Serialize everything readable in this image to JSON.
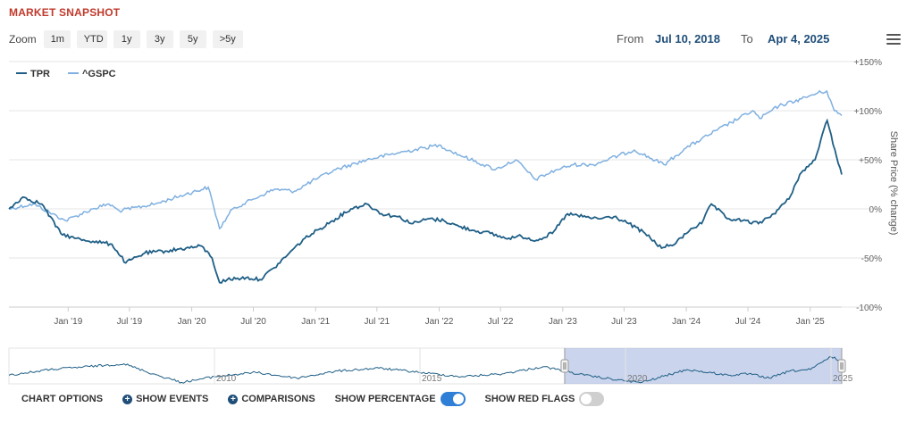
{
  "header": {
    "title": "MARKET SNAPSHOT"
  },
  "zoom": {
    "label": "Zoom",
    "buttons": [
      "1m",
      "YTD",
      "1y",
      "3y",
      "5y",
      ">5y"
    ]
  },
  "date_range": {
    "from_label": "From",
    "from_value": "Jul 10, 2018",
    "to_label": "To",
    "to_value": "Apr 4, 2025"
  },
  "menu": {
    "icon": "hamburger-menu-icon"
  },
  "chart_data": {
    "type": "line",
    "ylabel": "Share Price (% change)",
    "ylim": [
      -100,
      150
    ],
    "yticks": [
      "+150%",
      "+100%",
      "+50%",
      "0%",
      "-50%",
      "-100%"
    ],
    "xticks": [
      "Jan '19",
      "Jul '19",
      "Jan '20",
      "Jul '20",
      "Jan '21",
      "Jul '21",
      "Jan '22",
      "Jul '22",
      "Jan '23",
      "Jul '23",
      "Jan '24",
      "Jul '24",
      "Jan '25"
    ],
    "legend_position": "top-left",
    "series": [
      {
        "name": "TPR",
        "color": "#1f5f86",
        "x": [
          "2018-07-10",
          "2018-08-20",
          "2018-10-15",
          "2018-12-10",
          "2019-01-20",
          "2019-03-15",
          "2019-05-10",
          "2019-06-20",
          "2019-08-15",
          "2019-10-15",
          "2019-12-15",
          "2020-01-31",
          "2020-03-01",
          "2020-03-23",
          "2020-04-15",
          "2020-06-10",
          "2020-07-20",
          "2020-09-01",
          "2020-10-15",
          "2020-11-30",
          "2021-01-15",
          "2021-03-01",
          "2021-04-15",
          "2021-06-01",
          "2021-07-15",
          "2021-09-01",
          "2021-10-15",
          "2021-12-01",
          "2022-01-15",
          "2022-03-01",
          "2022-04-15",
          "2022-06-01",
          "2022-07-15",
          "2022-09-01",
          "2022-10-15",
          "2022-12-01",
          "2023-01-15",
          "2023-03-01",
          "2023-04-15",
          "2023-06-01",
          "2023-07-15",
          "2023-09-01",
          "2023-10-20",
          "2023-12-01",
          "2024-01-15",
          "2024-02-15",
          "2024-03-15",
          "2024-05-01",
          "2024-06-15",
          "2024-08-01",
          "2024-09-15",
          "2024-10-30",
          "2024-12-01",
          "2025-01-15",
          "2025-02-01",
          "2025-02-20",
          "2025-03-15",
          "2025-04-04"
        ],
        "values": [
          0,
          12,
          5,
          -25,
          -30,
          -33,
          -36,
          -55,
          -45,
          -43,
          -40,
          -38,
          -50,
          -75,
          -72,
          -70,
          -72,
          -60,
          -45,
          -30,
          -20,
          -10,
          0,
          5,
          -5,
          -8,
          -15,
          -10,
          -12,
          -18,
          -22,
          -25,
          -30,
          -28,
          -32,
          -25,
          -5,
          -8,
          -10,
          -8,
          -15,
          -25,
          -40,
          -35,
          -20,
          -15,
          5,
          -10,
          -12,
          -15,
          -5,
          10,
          35,
          50,
          70,
          90,
          60,
          35
        ]
      },
      {
        "name": "^GSPC",
        "color": "#7fb0e0",
        "x": [
          "2018-07-10",
          "2018-09-20",
          "2018-12-24",
          "2019-03-15",
          "2019-05-01",
          "2019-06-01",
          "2019-09-15",
          "2019-12-15",
          "2020-02-19",
          "2020-03-23",
          "2020-05-01",
          "2020-07-01",
          "2020-09-01",
          "2020-10-30",
          "2020-12-31",
          "2021-03-01",
          "2021-06-01",
          "2021-09-01",
          "2021-12-31",
          "2022-03-01",
          "2022-06-16",
          "2022-08-15",
          "2022-10-12",
          "2022-12-15",
          "2023-02-01",
          "2023-04-01",
          "2023-07-31",
          "2023-10-27",
          "2023-12-31",
          "2024-03-31",
          "2024-07-15",
          "2024-08-05",
          "2024-10-01",
          "2024-12-06",
          "2025-01-23",
          "2025-02-19",
          "2025-03-13",
          "2025-04-04"
        ],
        "values": [
          0,
          5,
          -12,
          0,
          5,
          -2,
          5,
          15,
          22,
          -20,
          0,
          10,
          20,
          18,
          30,
          40,
          50,
          57,
          65,
          55,
          40,
          50,
          30,
          40,
          45,
          45,
          60,
          45,
          62,
          80,
          100,
          92,
          105,
          112,
          118,
          120,
          100,
          95
        ]
      }
    ]
  },
  "navigator": {
    "labels": [
      "2010",
      "2015",
      "2020",
      "2025"
    ],
    "x": [
      2005.0,
      2006.0,
      2007.8,
      2008.5,
      2009.2,
      2010.0,
      2011.0,
      2012.0,
      2013.0,
      2014.0,
      2015.0,
      2016.0,
      2017.0,
      2018.0,
      2019.0,
      2020.0,
      2020.4,
      2021.5,
      2022.5,
      2023.0,
      2023.5,
      2024.0,
      2024.5,
      2025.0,
      2025.26
    ],
    "values": [
      -30,
      -10,
      10,
      -25,
      -55,
      -35,
      -20,
      -40,
      -15,
      -5,
      -20,
      -35,
      -25,
      0,
      -30,
      -50,
      -55,
      -10,
      -30,
      -25,
      -40,
      -15,
      -10,
      35,
      20
    ],
    "selected_range": [
      2018.52,
      2025.26
    ]
  },
  "options_bar": {
    "chart_options": "CHART OPTIONS",
    "show_events": "SHOW EVENTS",
    "comparisons": "COMPARISONS",
    "show_percentage": "SHOW PERCENTAGE",
    "show_red_flags": "SHOW RED FLAGS",
    "show_percentage_on": true,
    "show_red_flags_on": false
  }
}
